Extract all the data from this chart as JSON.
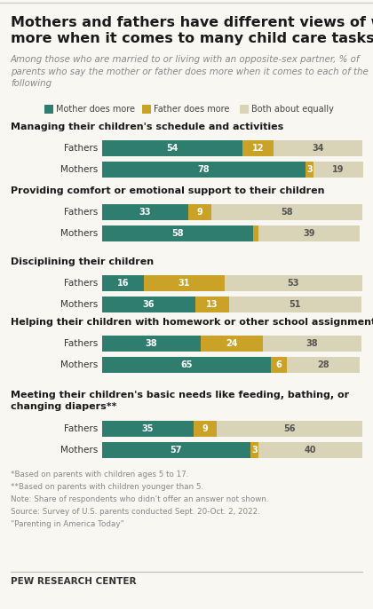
{
  "title_line1": "Mothers and fathers have different views of who does",
  "title_line2": "more when it comes to many child care tasks",
  "subtitle": "Among those who are married to or living with an opposite-sex partner, % of\nparents who say the mother or father does more when it comes to each of the\nfollowing",
  "legend": [
    "Mother does more",
    "Father does more",
    "Both about equally"
  ],
  "colors": [
    "#2e7d6e",
    "#c9a227",
    "#d9d3b8"
  ],
  "sections": [
    {
      "title": "Managing their children's schedule and activities",
      "title_lines": 1,
      "rows": [
        {
          "label": "Fathers",
          "values": [
            54,
            12,
            34
          ]
        },
        {
          "label": "Mothers",
          "values": [
            78,
            3,
            19
          ]
        }
      ]
    },
    {
      "title": "Providing comfort or emotional support to their children",
      "title_lines": 1,
      "rows": [
        {
          "label": "Fathers",
          "values": [
            33,
            9,
            58
          ]
        },
        {
          "label": "Mothers",
          "values": [
            58,
            2,
            39
          ]
        }
      ]
    },
    {
      "title": "Disciplining their children",
      "title_lines": 1,
      "rows": [
        {
          "label": "Fathers",
          "values": [
            16,
            31,
            53
          ]
        },
        {
          "label": "Mothers",
          "values": [
            36,
            13,
            51
          ]
        }
      ]
    },
    {
      "title": "Helping their children with homework or other school assignments*",
      "title_lines": 1,
      "rows": [
        {
          "label": "Fathers",
          "values": [
            38,
            24,
            38
          ]
        },
        {
          "label": "Mothers",
          "values": [
            65,
            6,
            28
          ]
        }
      ]
    },
    {
      "title": "Meeting their children's basic needs like feeding, bathing, or\nchanging diapers**",
      "title_lines": 2,
      "rows": [
        {
          "label": "Fathers",
          "values": [
            35,
            9,
            56
          ]
        },
        {
          "label": "Mothers",
          "values": [
            57,
            3,
            40
          ]
        }
      ]
    }
  ],
  "footnotes": [
    "*Based on parents with children ages 5 to 17.",
    "**Based on parents with children younger than 5.",
    "Note: Share of respondents who didn’t offer an answer not shown.",
    "Source: Survey of U.S. parents conducted Sept. 20-Oct. 2, 2022.",
    "“Parenting in America Today”"
  ],
  "footer": "PEW RESEARCH CENTER",
  "bg_color": "#f9f7f2",
  "footnote_color": "#888888"
}
